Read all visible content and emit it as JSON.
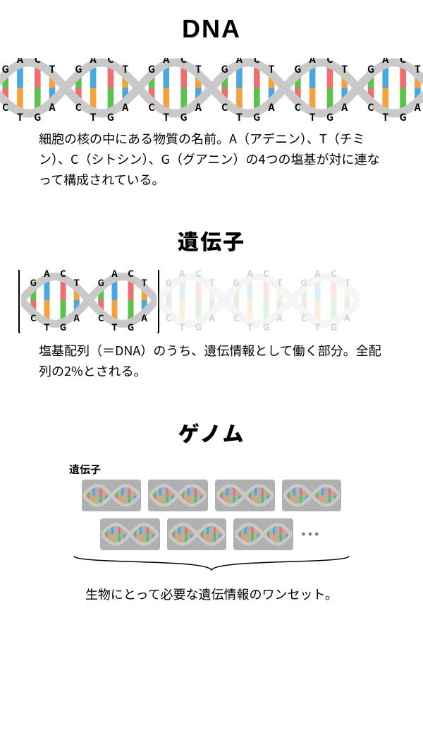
{
  "colors": {
    "red": "#ef6e6e",
    "blue": "#4aa8e0",
    "green": "#5bc24c",
    "orange": "#f5a23c",
    "backbone": "#c9c9c9",
    "chip_bg": "#b0b0b0",
    "text": "#000000",
    "bg": "#ffffff"
  },
  "dna": {
    "title": "DNA",
    "desc": "細胞の核の中にある物質の名前。A（アデニン）、T（チミン）、C（シトシン）、G（グアニン）の4つの塩基が対に連なって構成されている。",
    "title_fontsize": 36,
    "helix_units": 6,
    "bases_top": [
      "G",
      "A",
      "C",
      "T"
    ],
    "bases_bottom": [
      "C",
      "T",
      "G",
      "A"
    ]
  },
  "gene": {
    "title": "遺伝子",
    "desc": "塩基配列（＝DNA）のうち、遺伝情報として働く部分。全配列の2%とされる。",
    "title_fontsize": 30,
    "highlighted_units": 2,
    "total_units": 5
  },
  "genome": {
    "title": "ゲノム",
    "small_label": "遺伝子",
    "desc": "生物にとって必要な遺伝情報のワンセット。",
    "title_fontsize": 30,
    "chip_rows": [
      4,
      3
    ],
    "ellipsis": "…"
  }
}
